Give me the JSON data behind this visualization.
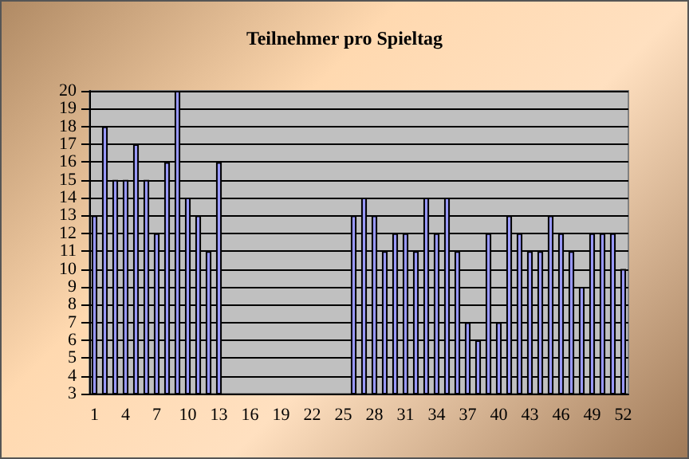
{
  "chart_data": {
    "type": "bar",
    "title": "Teilnehmer pro Spieltag",
    "categories": [
      "1",
      null,
      null,
      "4",
      null,
      null,
      "7",
      null,
      null,
      "10",
      null,
      null,
      "13",
      null,
      null,
      "16",
      null,
      null,
      "19",
      null,
      null,
      "22",
      null,
      null,
      "25",
      null,
      null,
      "28",
      null,
      null,
      "31",
      null,
      null,
      "34",
      null,
      null,
      "37",
      null,
      null,
      "40",
      null,
      null,
      "43",
      null,
      null,
      "46",
      null,
      null,
      "49",
      null,
      null,
      "52"
    ],
    "values": [
      13,
      18,
      15,
      15,
      17,
      15,
      12,
      16,
      20,
      14,
      13,
      11,
      16,
      3,
      3,
      3,
      3,
      3,
      3,
      3,
      3,
      3,
      3,
      3,
      3,
      13,
      14,
      13,
      11,
      12,
      12,
      11,
      14,
      12,
      14,
      11,
      7,
      6,
      12,
      7,
      13,
      12,
      11,
      11,
      13,
      12,
      11,
      9,
      12,
      12,
      12,
      10
    ],
    "color": "#9999ff",
    "ylim": [
      3,
      20
    ],
    "yticks": [
      3,
      4,
      5,
      6,
      7,
      8,
      9,
      10,
      11,
      12,
      13,
      14,
      15,
      16,
      17,
      18,
      19,
      20
    ],
    "grid": "y"
  }
}
